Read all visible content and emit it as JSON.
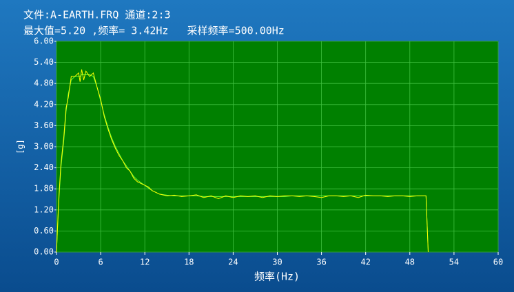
{
  "chart_data": {
    "type": "line",
    "title": "文件:A-EARTH.FRQ 通道:2:3",
    "subtitle": "最大值=5.20 ,频率= 3.42Hz   采样频率=500.00Hz",
    "xlabel": "频率(Hz)",
    "ylabel": "[g]",
    "x": [
      0,
      0.3,
      0.6,
      1,
      1.3,
      1.6,
      2,
      2.5,
      3,
      3.2,
      3.42,
      3.7,
      4,
      4.5,
      5,
      5.5,
      6,
      6.5,
      7,
      7.5,
      8,
      8.5,
      9,
      9.5,
      10,
      10.5,
      11,
      11.5,
      12,
      12.5,
      13,
      14,
      15,
      16,
      17,
      18,
      19,
      20,
      21,
      22,
      23,
      24,
      25,
      26,
      27,
      28,
      29,
      30,
      31,
      32,
      33,
      34,
      35,
      36,
      37,
      38,
      39,
      40,
      41,
      42,
      43,
      44,
      45,
      46,
      47,
      48,
      49,
      50,
      50.2,
      50.5
    ],
    "series": [
      {
        "color": "#ffff00",
        "values": [
          0,
          1.5,
          2.5,
          3.3,
          4.1,
          4.4,
          5.0,
          5.0,
          5.1,
          4.85,
          5.2,
          4.9,
          5.15,
          5.0,
          5.1,
          4.7,
          4.35,
          3.85,
          3.5,
          3.2,
          2.95,
          2.75,
          2.6,
          2.4,
          2.3,
          2.1,
          2.0,
          1.95,
          1.9,
          1.85,
          1.75,
          1.65,
          1.6,
          1.62,
          1.58,
          1.6,
          1.63,
          1.55,
          1.6,
          1.52,
          1.6,
          1.55,
          1.6,
          1.58,
          1.6,
          1.55,
          1.6,
          1.58,
          1.6,
          1.6,
          1.58,
          1.6,
          1.58,
          1.55,
          1.6,
          1.6,
          1.58,
          1.6,
          1.55,
          1.62,
          1.6,
          1.6,
          1.58,
          1.6,
          1.6,
          1.58,
          1.6,
          1.6,
          1.6,
          0
        ]
      },
      {
        "color": "#66ff33",
        "values": [
          0,
          1.4,
          2.4,
          3.2,
          4.0,
          4.5,
          4.9,
          5.0,
          5.0,
          5.0,
          5.05,
          5.05,
          5.05,
          5.05,
          5.0,
          4.7,
          4.3,
          3.9,
          3.55,
          3.25,
          3.0,
          2.8,
          2.6,
          2.45,
          2.3,
          2.15,
          2.05,
          1.97,
          1.9,
          1.82,
          1.75,
          1.65,
          1.62,
          1.6,
          1.6,
          1.6,
          1.6,
          1.58,
          1.58,
          1.58,
          1.58,
          1.58,
          1.58,
          1.58,
          1.58,
          1.58,
          1.58,
          1.58,
          1.58,
          1.6,
          1.6,
          1.6,
          1.6,
          1.6,
          1.6,
          1.6,
          1.6,
          1.6,
          1.6,
          1.6,
          1.6,
          1.6,
          1.6,
          1.6,
          1.6,
          1.6,
          1.6,
          1.6,
          1.6,
          0
        ]
      }
    ],
    "xlim": [
      0,
      60
    ],
    "xticks": [
      0,
      6,
      12,
      18,
      24,
      30,
      36,
      42,
      48,
      54,
      60
    ],
    "ylim": [
      0,
      6
    ],
    "yticks": [
      {
        "value": 0,
        "label": "0.00"
      },
      {
        "value": 0.6,
        "label": "0.60"
      },
      {
        "value": 1.2,
        "label": "1.20"
      },
      {
        "value": 1.8,
        "label": "1.80"
      },
      {
        "value": 2.4,
        "label": "2.40"
      },
      {
        "value": 3,
        "label": "3.00"
      },
      {
        "value": 3.6,
        "label": "3.60"
      },
      {
        "value": 4.2,
        "label": "4.20"
      },
      {
        "value": 4.8,
        "label": "4.80"
      },
      {
        "value": 5.4,
        "label": "5.40"
      },
      {
        "value": 6,
        "label": "6.00"
      }
    ],
    "grid": true,
    "plot_color": "#008000",
    "grid_color": "#40c040"
  }
}
